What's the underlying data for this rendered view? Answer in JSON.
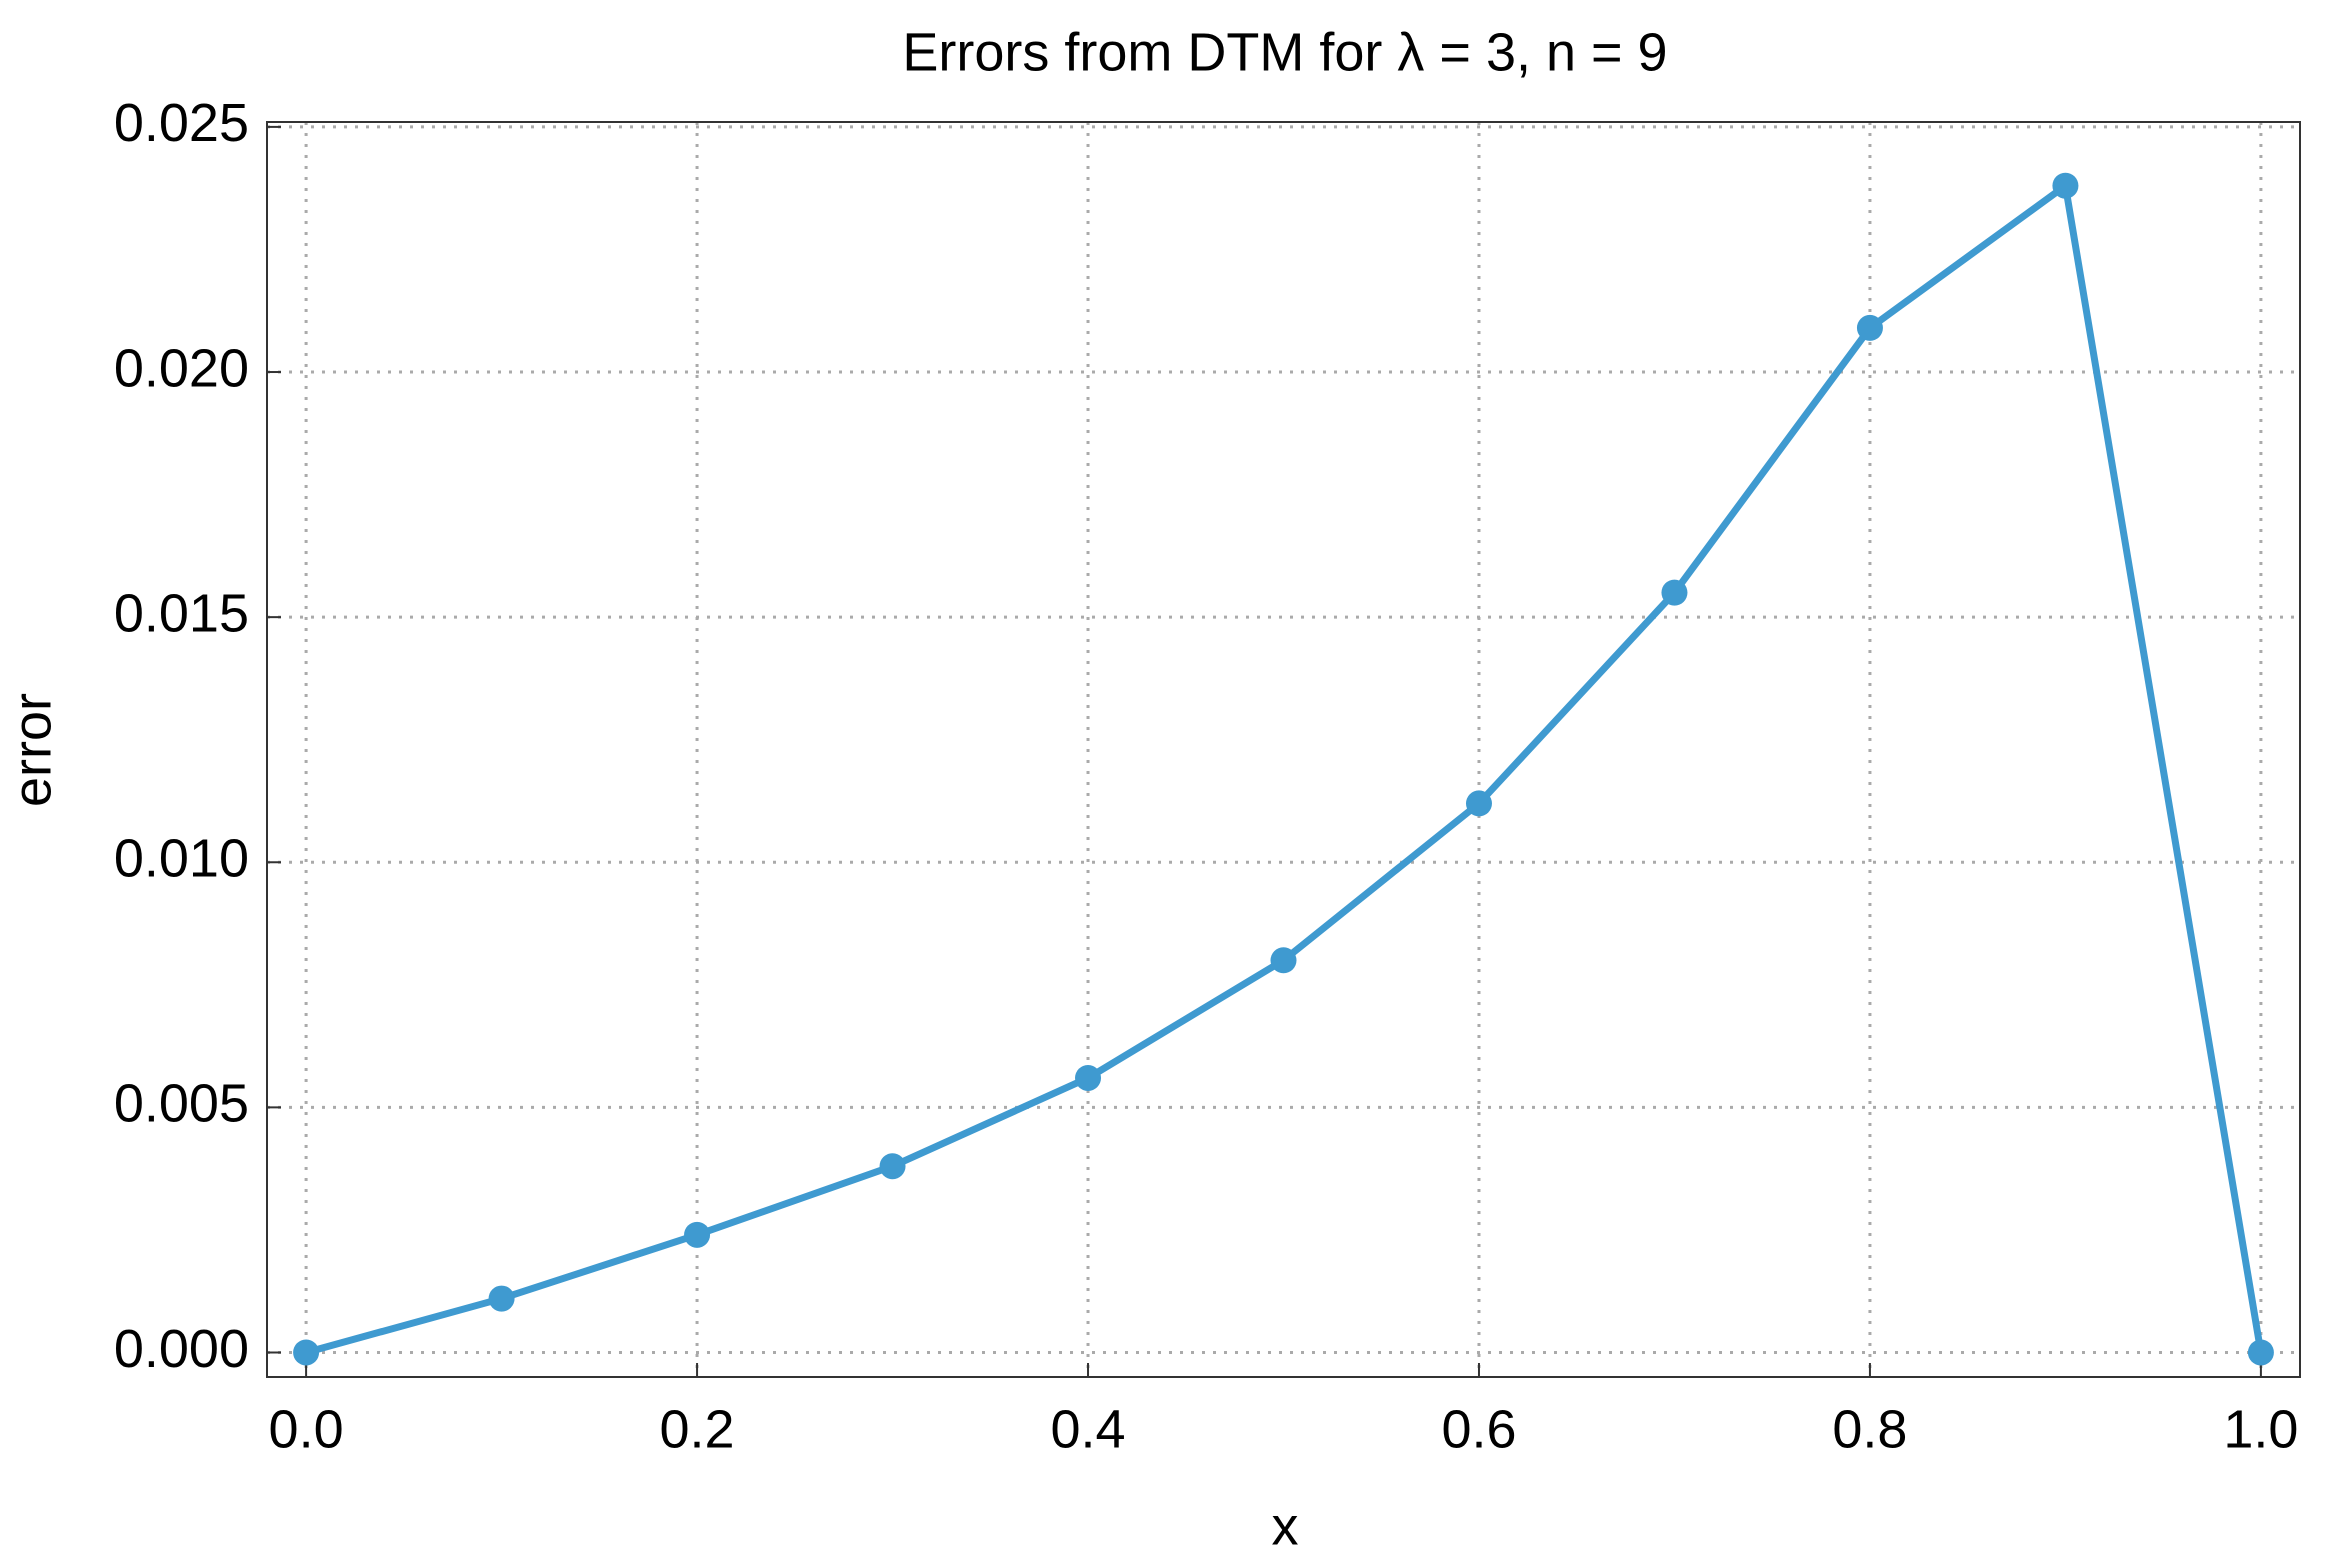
{
  "chart_data": {
    "type": "line",
    "title": "Errors from DTM for λ = 3, n = 9",
    "x_label": "x",
    "y_label": "error",
    "x": [
      0,
      0.1,
      0.2,
      0.3,
      0.4,
      0.5,
      0.6,
      0.7,
      0.8,
      0.9,
      1
    ],
    "series": [
      {
        "name": "error",
        "color": "#3f9ad0",
        "values": [
          0,
          0.0011,
          0.0024,
          0.0038,
          0.0056,
          0.008,
          0.0112,
          0.0155,
          0.0209,
          0.0238,
          0
        ]
      }
    ],
    "xlim": [
      -0.02,
      1.02
    ],
    "ylim": [
      -0.0005,
      0.0251
    ],
    "xticks": [
      {
        "value": 0,
        "label": "0.0"
      },
      {
        "value": 0.2,
        "label": "0.2"
      },
      {
        "value": 0.4,
        "label": "0.4"
      },
      {
        "value": 0.6,
        "label": "0.6"
      },
      {
        "value": 0.8,
        "label": "0.8"
      },
      {
        "value": 1,
        "label": "1.0"
      }
    ],
    "yticks": [
      {
        "value": 0,
        "label": "0.000"
      },
      {
        "value": 0.005,
        "label": "0.005"
      },
      {
        "value": 0.01,
        "label": "0.010"
      },
      {
        "value": 0.015,
        "label": "0.015"
      },
      {
        "value": 0.02,
        "label": "0.020"
      },
      {
        "value": 0.025,
        "label": "0.025"
      }
    ],
    "grid": true
  }
}
